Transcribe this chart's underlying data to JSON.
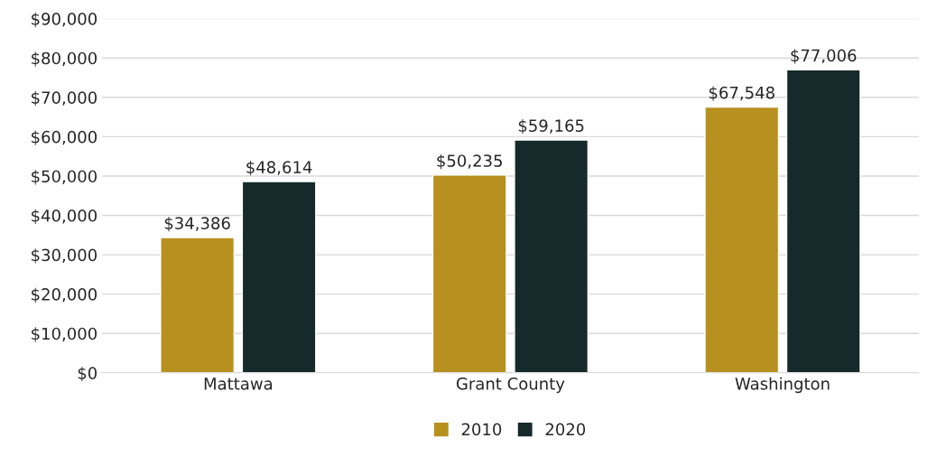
{
  "chart_data": {
    "type": "bar",
    "categories": [
      "Mattawa",
      "Grant County",
      "Washington"
    ],
    "series": [
      {
        "name": "2010",
        "color": "#b8901f",
        "values": [
          34386,
          50235,
          67548
        ],
        "value_labels": [
          "$34,386",
          "$50,235",
          "$67,548"
        ]
      },
      {
        "name": "2020",
        "color": "#16292b",
        "values": [
          48614,
          59165,
          77006
        ],
        "value_labels": [
          "$48,614",
          "$59,165",
          "$77,006"
        ]
      }
    ],
    "ylim": [
      0,
      90000
    ],
    "yticks": [
      {
        "value": 0,
        "label": "$0"
      },
      {
        "value": 10000,
        "label": "$10,000"
      },
      {
        "value": 20000,
        "label": "$20,000"
      },
      {
        "value": 30000,
        "label": "$30,000"
      },
      {
        "value": 40000,
        "label": "$40,000"
      },
      {
        "value": 50000,
        "label": "$50,000"
      },
      {
        "value": 60000,
        "label": "$60,000"
      },
      {
        "value": 70000,
        "label": "$70,000"
      },
      {
        "value": 80000,
        "label": "$80,000"
      },
      {
        "value": 90000,
        "label": "$90,000"
      }
    ],
    "grid": "y",
    "legend": "bottom"
  }
}
